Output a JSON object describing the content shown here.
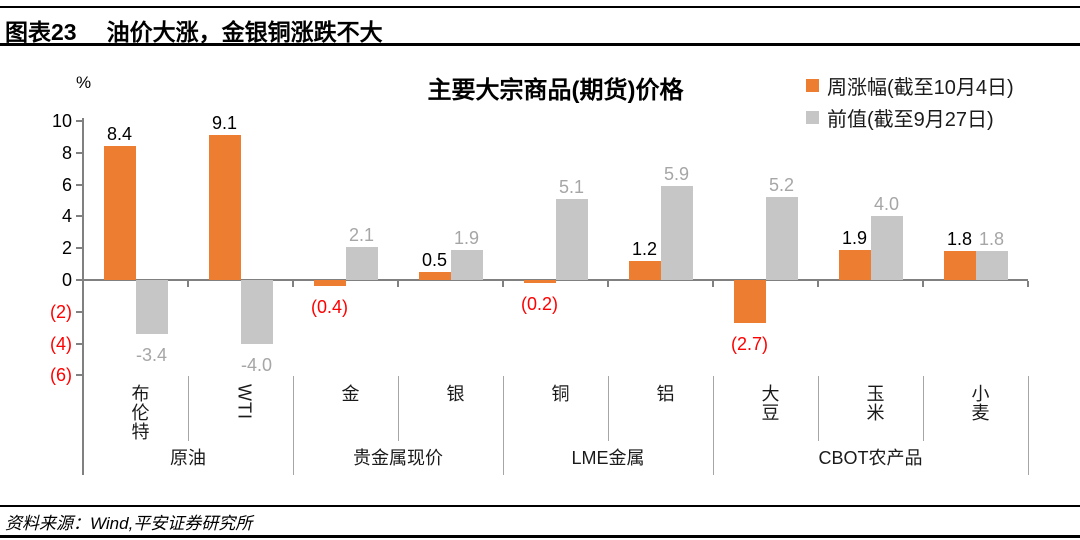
{
  "header": {
    "tag": "图表23",
    "title": "油价大涨，金银铜涨跌不大"
  },
  "chart_data": {
    "type": "bar",
    "title": "主要大宗商品(期货)价格",
    "ylabel": "%",
    "ylim": [
      -6,
      10
    ],
    "y_ticks": [
      10,
      8,
      6,
      4,
      2,
      0,
      -2,
      -4,
      -6
    ],
    "grid": false,
    "legend_position": "top-right",
    "categories": [
      "布伦特",
      "WTI",
      "金",
      "银",
      "铜",
      "铝",
      "大豆",
      "玉米",
      "小麦"
    ],
    "category_groups": [
      {
        "label": "原油",
        "span": 2
      },
      {
        "label": "贵金属现价",
        "span": 2
      },
      {
        "label": "LME金属",
        "span": 2
      },
      {
        "label": "CBOT农产品",
        "span": 3
      }
    ],
    "series": [
      {
        "name": "周涨幅(截至10月4日)",
        "color": "#ED7D31",
        "values": [
          8.4,
          9.1,
          -0.4,
          0.5,
          -0.2,
          1.2,
          -2.7,
          1.9,
          1.8
        ],
        "label_style": "positive-black-negative-red-parentheses"
      },
      {
        "name": "前值(截至9月27日)",
        "color": "#C6C6C6",
        "values": [
          -3.4,
          -4.0,
          2.1,
          1.9,
          5.1,
          5.9,
          5.2,
          4.0,
          1.8
        ],
        "label_style": "gray"
      }
    ],
    "colors": {
      "week_bar": "#ED7D31",
      "prev_bar": "#C6C6C6",
      "prev_label_text": "#A6A6A6",
      "negative_text": "#FF0000",
      "positive_text": "#000000",
      "axis": "#808080",
      "separator": "#A6A6A6"
    }
  },
  "footer": {
    "source": "资料来源：Wind,平安证券研究所"
  }
}
